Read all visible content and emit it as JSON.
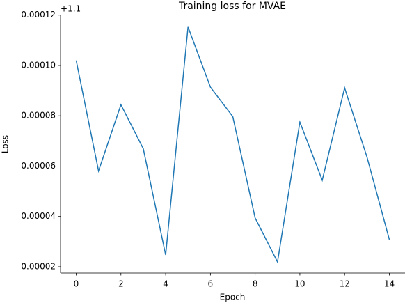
{
  "chart_data": {
    "type": "line",
    "title": "Training loss for MVAE",
    "x_label": "Epoch",
    "y_label": "Loss",
    "y_offset_label": "+1.1",
    "x": [
      0,
      1,
      2,
      3,
      4,
      5,
      6,
      7,
      8,
      9,
      10,
      11,
      12,
      13,
      14
    ],
    "series": [
      {
        "name": "Loss",
        "color": "#1f77b4",
        "values": [
          0.000102,
          5.81e-05,
          8.44e-05,
          6.69e-05,
          2.47e-05,
          0.0001153,
          9.14e-05,
          7.97e-05,
          3.94e-05,
          2.19e-05,
          7.75e-05,
          5.44e-05,
          9.11e-05,
          6.36e-05,
          3.08e-05
        ]
      }
    ],
    "xlim": [
      -0.7,
      14.7
    ],
    "xticks": [
      0,
      2,
      4,
      6,
      8,
      10,
      12,
      14
    ],
    "ylim": [
      1.75e-05,
      0.0001202
    ],
    "yticks": [
      {
        "value": 2e-05,
        "label": "0.00002"
      },
      {
        "value": 4e-05,
        "label": "0.00004"
      },
      {
        "value": 6e-05,
        "label": "0.00006"
      },
      {
        "value": 8e-05,
        "label": "0.00008"
      },
      {
        "value": 0.0001,
        "label": "0.00010"
      },
      {
        "value": 0.00012,
        "label": "0.00012"
      }
    ],
    "grid": false
  }
}
